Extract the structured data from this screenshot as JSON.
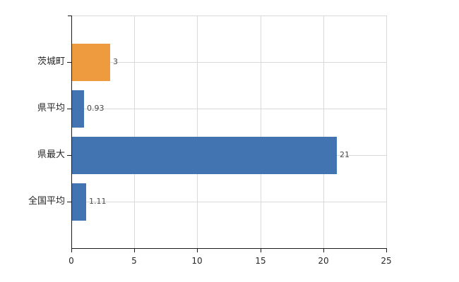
{
  "chart_data": {
    "type": "bar",
    "orientation": "horizontal",
    "title": "",
    "categories": [
      "茨城町",
      "県平均",
      "県最大",
      "全国平均"
    ],
    "values": [
      3,
      0.93,
      21,
      1.11
    ],
    "value_labels": [
      "3",
      "0.93",
      "21",
      "1.11"
    ],
    "bar_colors": [
      "#EE9A3E",
      "#4374B2",
      "#4374B2",
      "#4374B2"
    ],
    "xlim": [
      0,
      25
    ],
    "x_ticks": [
      0,
      5,
      10,
      15,
      20,
      25
    ],
    "x_tick_labels": [
      "0",
      "5",
      "10",
      "15",
      "20",
      "25"
    ],
    "grid": "horizontal lines at category centers and top, vertical lines at x ticks",
    "legend": "none",
    "colors": {
      "orange": "#EE9A3E",
      "blue": "#4374B2",
      "grid": "#d9d9d9",
      "axis": "#1a1a1a",
      "category_text": "#262626",
      "value_text": "#4a4a4a",
      "background": "#ffffff"
    }
  }
}
